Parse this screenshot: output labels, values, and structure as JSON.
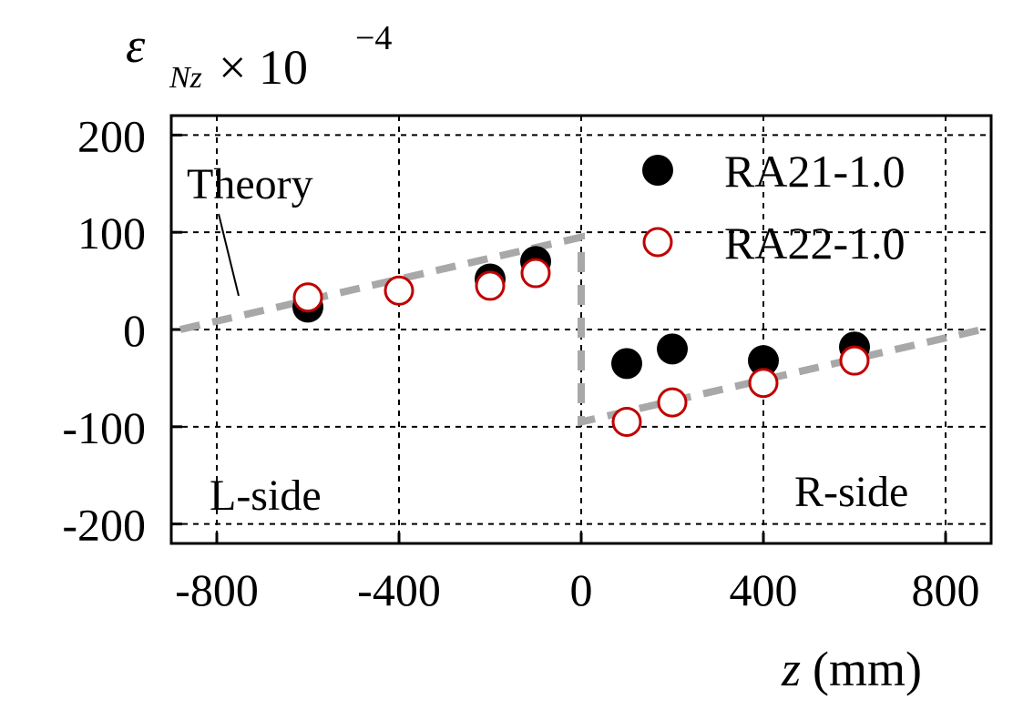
{
  "chart_data": {
    "type": "scatter",
    "title": "",
    "ylabel_symbol": "ε",
    "ylabel_subscript": "Nz",
    "ylabel_times": "× 10",
    "ylabel_exponent": "−4",
    "xlabel_var": "z",
    "xlabel_unit": "(mm)",
    "xlim": [
      -900,
      900
    ],
    "ylim": [
      -220,
      220
    ],
    "x_ticks": [
      -800,
      -400,
      0,
      400,
      800
    ],
    "x_tick_labels": [
      "-800",
      "-400",
      "0",
      "400",
      "800"
    ],
    "y_ticks": [
      -200,
      -100,
      0,
      100,
      200
    ],
    "y_tick_labels": [
      "-200",
      "-100",
      "0",
      "100",
      "200"
    ],
    "grid": true,
    "series": [
      {
        "name": "RA21-1.0",
        "marker": "filled-circle",
        "color": "#000000",
        "points": [
          {
            "x": -600,
            "y": 23
          },
          {
            "x": -200,
            "y": 52
          },
          {
            "x": -100,
            "y": 70
          },
          {
            "x": 100,
            "y": -35
          },
          {
            "x": 200,
            "y": -20
          },
          {
            "x": 400,
            "y": -32
          },
          {
            "x": 600,
            "y": -18
          }
        ]
      },
      {
        "name": "RA22-1.0",
        "marker": "open-circle",
        "color": "#c00000",
        "points": [
          {
            "x": -600,
            "y": 33
          },
          {
            "x": -400,
            "y": 40
          },
          {
            "x": -200,
            "y": 45
          },
          {
            "x": -100,
            "y": 58
          },
          {
            "x": 100,
            "y": -95
          },
          {
            "x": 200,
            "y": -75
          },
          {
            "x": 400,
            "y": -55
          },
          {
            "x": 600,
            "y": -32
          }
        ]
      }
    ],
    "theory": {
      "name": "Theory",
      "color": "#a8a8a8",
      "points": [
        {
          "x": -880,
          "y": 0
        },
        {
          "x": 0,
          "y": 95
        },
        {
          "x": 0,
          "y": -95
        },
        {
          "x": 880,
          "y": 0
        }
      ]
    },
    "annotations": {
      "theory_label": "Theory",
      "left_label": "L-side",
      "right_label": "R-side"
    },
    "legend_position": "top-right"
  }
}
